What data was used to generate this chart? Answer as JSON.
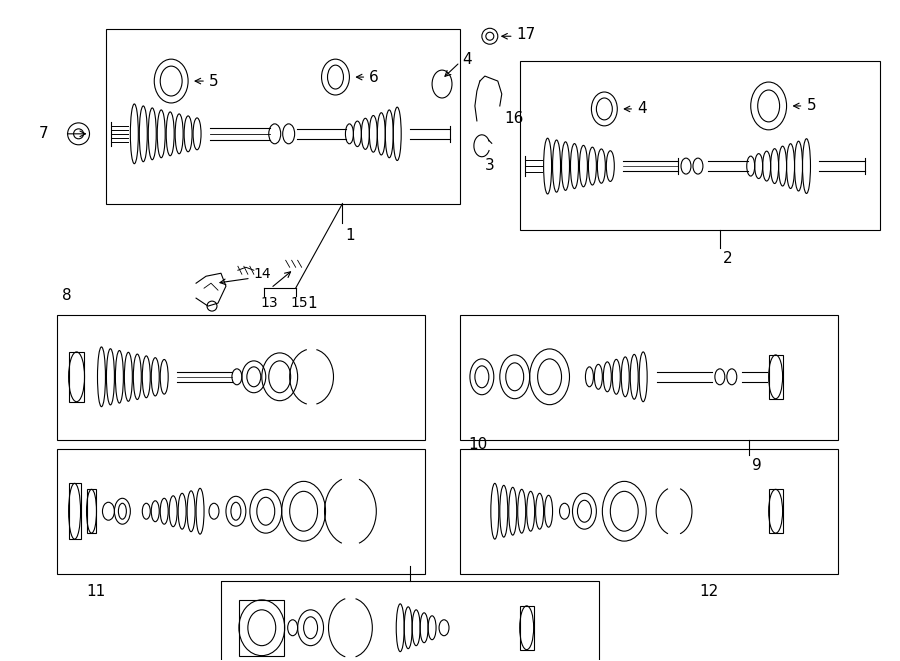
{
  "bg_color": "#ffffff",
  "line_color": "#000000",
  "fig_width": 9.0,
  "fig_height": 6.61,
  "dpi": 100,
  "lw": 0.8
}
